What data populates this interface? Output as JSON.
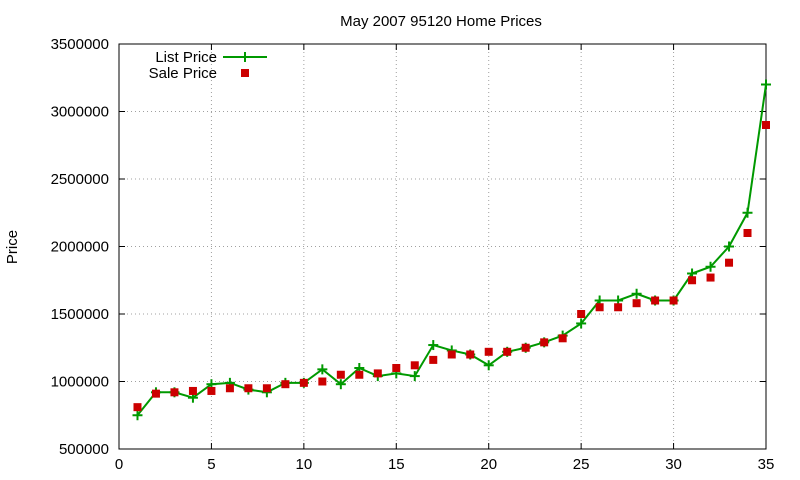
{
  "chart_data": {
    "type": "line",
    "title": "May 2007 95120 Home Prices",
    "xlabel": "",
    "ylabel": "Price",
    "xlim": [
      0,
      35
    ],
    "ylim": [
      500000,
      3500000
    ],
    "xticks": [
      0,
      5,
      10,
      15,
      20,
      25,
      30,
      35
    ],
    "yticks": [
      500000,
      1000000,
      1500000,
      2000000,
      2500000,
      3000000,
      3500000
    ],
    "grid": true,
    "legend_position": "top-left",
    "series": [
      {
        "name": "List Price",
        "style": "line+cross",
        "color": "#009900",
        "x": [
          1,
          2,
          3,
          4,
          5,
          6,
          7,
          8,
          9,
          10,
          11,
          12,
          13,
          14,
          15,
          16,
          17,
          18,
          19,
          20,
          21,
          22,
          23,
          24,
          25,
          26,
          27,
          28,
          29,
          30,
          31,
          32,
          33,
          34,
          35
        ],
        "y": [
          750000,
          920000,
          920000,
          880000,
          980000,
          990000,
          940000,
          920000,
          990000,
          990000,
          1090000,
          980000,
          1100000,
          1040000,
          1060000,
          1040000,
          1270000,
          1230000,
          1200000,
          1120000,
          1220000,
          1250000,
          1290000,
          1340000,
          1430000,
          1600000,
          1600000,
          1650000,
          1600000,
          1600000,
          1800000,
          1850000,
          2000000,
          2250000,
          3200000
        ]
      },
      {
        "name": "Sale Price",
        "style": "square",
        "color": "#cc0000",
        "x": [
          1,
          2,
          3,
          4,
          5,
          6,
          7,
          8,
          9,
          10,
          11,
          12,
          13,
          14,
          15,
          16,
          17,
          18,
          19,
          20,
          21,
          22,
          23,
          24,
          25,
          26,
          27,
          28,
          29,
          30,
          31,
          32,
          33,
          34,
          35
        ],
        "y": [
          810000,
          910000,
          920000,
          930000,
          930000,
          950000,
          950000,
          950000,
          980000,
          990000,
          1000000,
          1050000,
          1050000,
          1060000,
          1100000,
          1120000,
          1160000,
          1200000,
          1200000,
          1220000,
          1220000,
          1250000,
          1290000,
          1320000,
          1500000,
          1550000,
          1550000,
          1580000,
          1600000,
          1600000,
          1750000,
          1770000,
          1880000,
          2100000,
          2900000
        ]
      }
    ]
  }
}
